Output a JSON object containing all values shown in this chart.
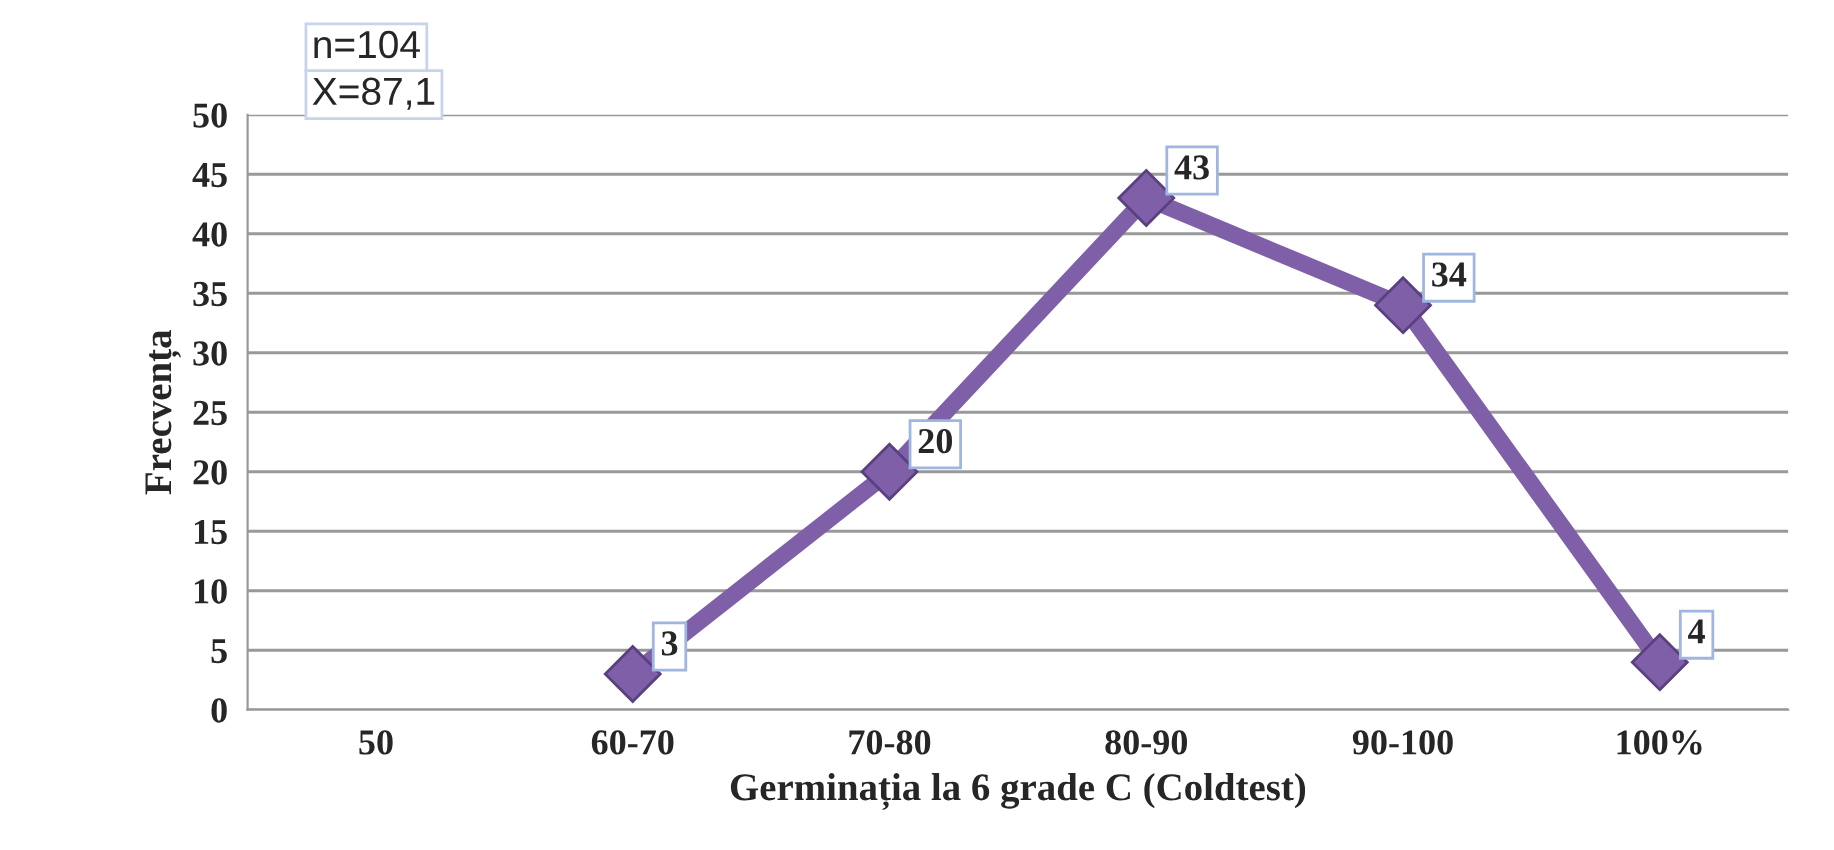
{
  "chart_data": {
    "type": "line",
    "xlabel": "Germinația la 6 grade C (Coldtest)",
    "ylabel": "Frecvența",
    "categories": [
      "50",
      "60-70",
      "70-80",
      "80-90",
      "90-100",
      "100%"
    ],
    "series": [
      {
        "color": "#7f60a8",
        "values": [
          null,
          3,
          20,
          43,
          34,
          4
        ]
      }
    ],
    "ylim": [
      0,
      50
    ],
    "yticks": [
      0,
      5,
      10,
      15,
      20,
      25,
      30,
      35,
      40,
      45,
      50
    ],
    "grid": "y",
    "marker": "diamond",
    "line_style": "solid",
    "data_labels": true,
    "legend": false,
    "annotations": [
      "n=104",
      "X=87,1"
    ]
  }
}
